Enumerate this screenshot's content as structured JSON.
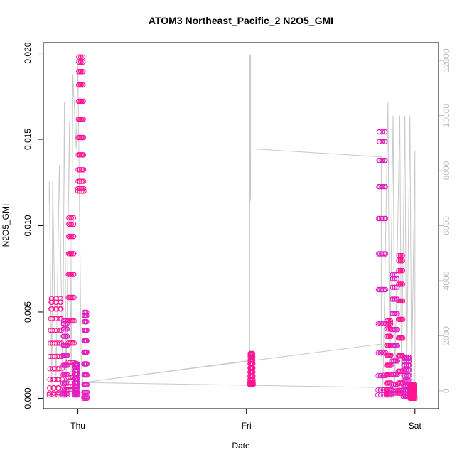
{
  "chart_data": {
    "type": "scatter",
    "title": "ATOM3 Northeast_Pacific_2 N2O5_GMI",
    "xlabel": "Date",
    "ylabel": "N2O5_GMI",
    "x_ticks": [
      "Thu",
      "Fri",
      "Sat"
    ],
    "y_ticks": [
      "0.000",
      "0.005",
      "0.010",
      "0.015",
      "0.020"
    ],
    "ylim": [
      -0.0006,
      0.0206
    ],
    "y2_ticks": [
      "0",
      "2000",
      "4000",
      "6000",
      "8000",
      "10000",
      "12000"
    ],
    "y2lim": [
      -650,
      12650
    ],
    "grid": false,
    "colors": {
      "points_primary": "#ff1493",
      "points_secondary": "#e020c0",
      "altitude_line": "#c8c8c8",
      "right_axis": "#bdbdbd"
    },
    "series": [
      {
        "kind": "points",
        "clusters": [
          {
            "t0": -0.17,
            "t1": -0.09,
            "peak": 0.0058,
            "base": 0.0002
          },
          {
            "t0": -0.09,
            "t1": -0.06,
            "peak": 0.0045,
            "base": 0.0002
          },
          {
            "t0": -0.06,
            "t1": -0.02,
            "peak": 0.0105,
            "base": 0.0005
          },
          {
            "t0": -0.02,
            "t1": 0.0,
            "peak": 0.002,
            "base": 0.0002
          },
          {
            "t0": 0.0,
            "t1": 0.035,
            "peak": 0.0198,
            "base": 0.012
          },
          {
            "t0": 0.035,
            "t1": 0.055,
            "peak": 0.005,
            "base": 0.0
          },
          {
            "t0": 1.02,
            "t1": 1.04,
            "peak": 0.0026,
            "base": 0.0008
          },
          {
            "t0": 1.78,
            "t1": 1.83,
            "peak": 0.0155,
            "base": 0.0002
          },
          {
            "t0": 1.83,
            "t1": 1.86,
            "peak": 0.0045,
            "base": 0.0002
          },
          {
            "t0": 1.86,
            "t1": 1.9,
            "peak": 0.0072,
            "base": 0.0003
          },
          {
            "t0": 1.9,
            "t1": 1.93,
            "peak": 0.0083,
            "base": 0.0003
          },
          {
            "t0": 1.93,
            "t1": 1.97,
            "peak": 0.0024,
            "base": 0.0001
          },
          {
            "t0": 1.97,
            "t1": 2.0,
            "peak": 0.0008,
            "base": 0.0
          }
        ]
      },
      {
        "kind": "altitude_line",
        "points": [
          [
            -0.17,
            6800
          ],
          [
            -0.17,
            7600
          ],
          [
            -0.155,
            200
          ],
          [
            -0.15,
            7600
          ],
          [
            -0.13,
            300
          ],
          [
            -0.11,
            8200
          ],
          [
            -0.09,
            400
          ],
          [
            -0.08,
            10500
          ],
          [
            -0.07,
            200
          ],
          [
            -0.05,
            9800
          ],
          [
            -0.04,
            300
          ],
          [
            -0.03,
            11500
          ],
          [
            -0.01,
            8800
          ],
          [
            0.0,
            11800
          ],
          [
            0.02,
            1000
          ],
          [
            0.03,
            300
          ],
          [
            1.02,
            1100
          ],
          [
            1.02,
            12200
          ],
          [
            1.025,
            12200
          ],
          [
            1.025,
            6900
          ],
          [
            1.02,
            8900
          ],
          [
            1.02,
            8800
          ],
          [
            1.8,
            8500
          ],
          [
            1.8,
            1500
          ],
          [
            1.81,
            200
          ],
          [
            1.84,
            10500
          ],
          [
            1.85,
            300
          ],
          [
            1.87,
            10000
          ],
          [
            1.88,
            200
          ],
          [
            1.91,
            10000
          ],
          [
            1.92,
            300
          ],
          [
            1.94,
            10000
          ],
          [
            1.95,
            200
          ],
          [
            1.97,
            10000
          ],
          [
            1.98,
            300
          ],
          [
            2.0,
            8700
          ],
          [
            2.0,
            100
          ],
          [
            0.03,
            300
          ],
          [
            1.8,
            1700
          ]
        ]
      }
    ]
  }
}
